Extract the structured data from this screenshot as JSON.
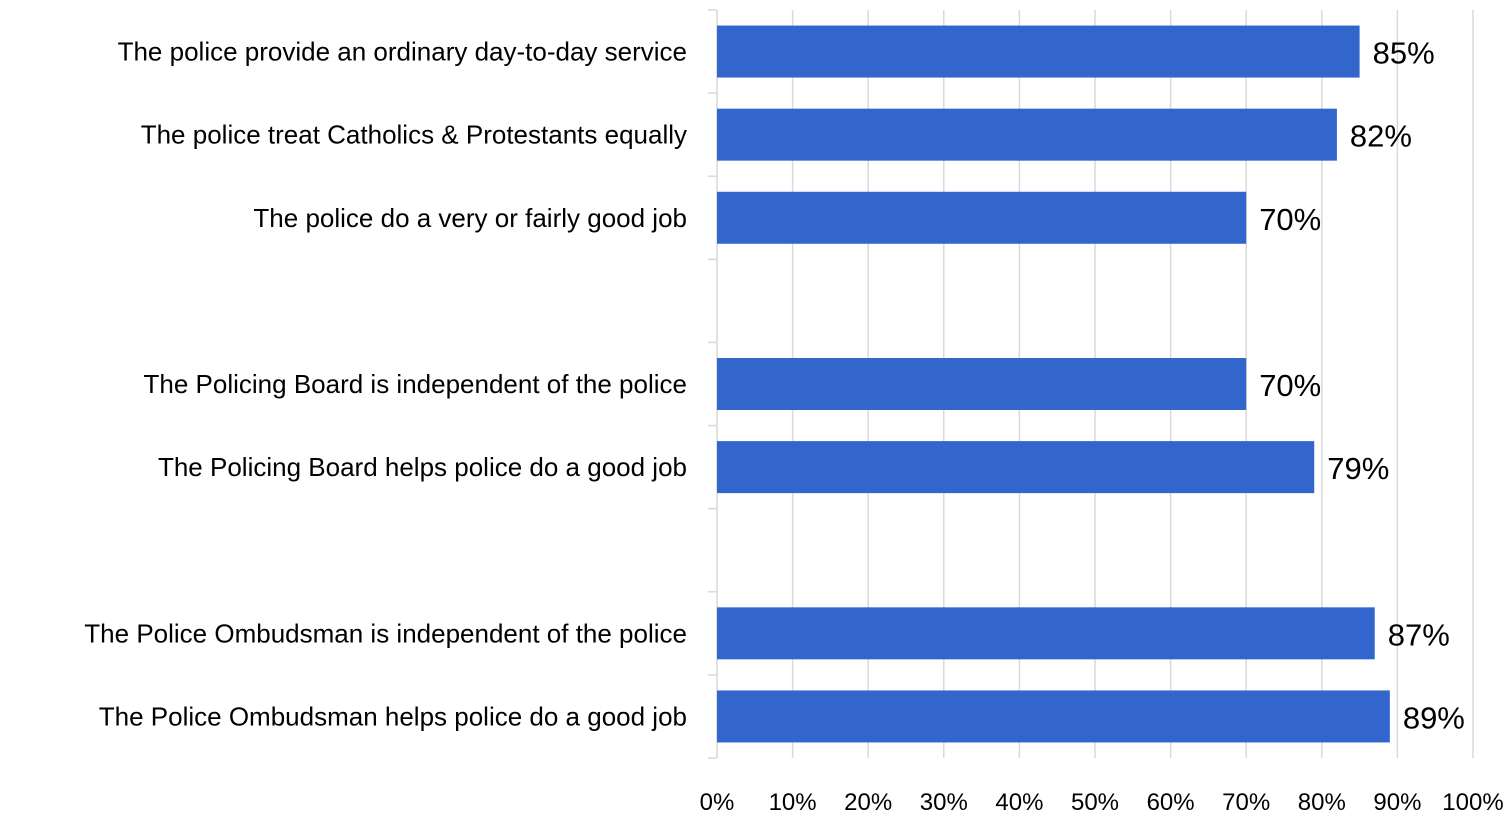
{
  "chart_data": {
    "type": "bar",
    "orientation": "horizontal",
    "categories": [
      "The police provide an ordinary day-to-day service",
      "The police treat Catholics & Protestants equally",
      "The police do a very or fairly good job",
      "",
      "The Policing Board is independent of the police",
      "The Policing Board helps police do a good job",
      "",
      "The Police Ombudsman is independent of the police",
      "The Police Ombudsman helps police do a good job"
    ],
    "values": [
      85,
      82,
      70,
      null,
      70,
      79,
      null,
      87,
      89
    ],
    "data_labels": [
      "85%",
      "82%",
      "70%",
      "",
      "70%",
      "79%",
      "",
      "87%",
      "89%"
    ],
    "x_ticks": [
      "0%",
      "10%",
      "20%",
      "30%",
      "40%",
      "50%",
      "60%",
      "70%",
      "80%",
      "90%",
      "100%"
    ],
    "xlim": [
      0,
      100
    ],
    "grid": true,
    "legend": "none",
    "bar_color": "#3366CC",
    "title": "",
    "xlabel": "",
    "ylabel": ""
  }
}
